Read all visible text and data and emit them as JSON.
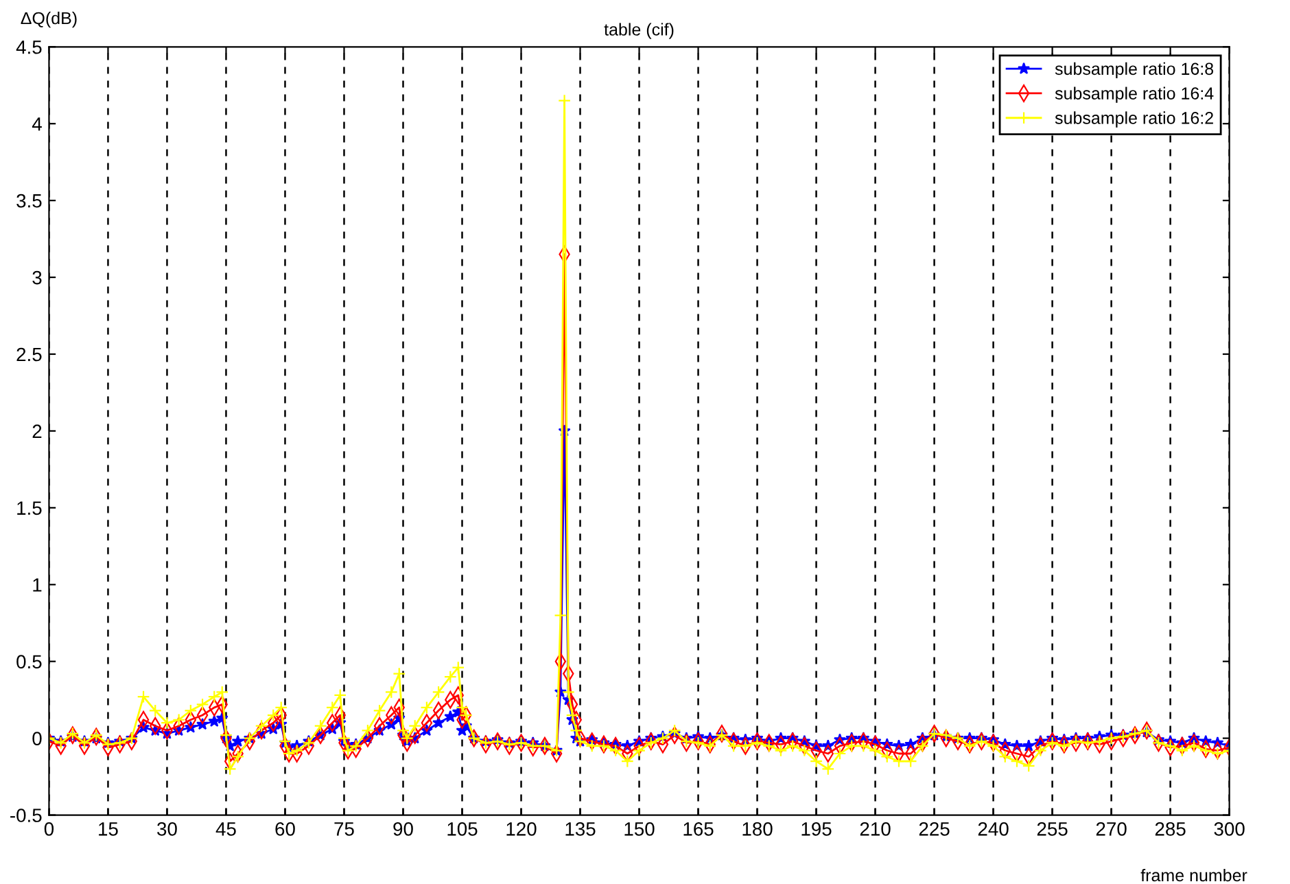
{
  "chart_data": {
    "type": "line",
    "title": "table (cif)",
    "xlabel": "frame number",
    "ylabel": "ΔQ(dB)",
    "x": [
      0,
      3,
      6,
      9,
      12,
      15,
      18,
      21,
      24,
      27,
      30,
      33,
      36,
      39,
      42,
      44,
      45,
      46,
      48,
      51,
      54,
      57,
      59,
      60,
      61,
      63,
      66,
      69,
      72,
      74,
      75,
      76,
      78,
      81,
      84,
      87,
      89,
      90,
      91,
      93,
      96,
      99,
      102,
      104,
      105,
      106,
      108,
      111,
      114,
      117,
      120,
      123,
      126,
      129,
      130,
      131,
      132,
      133,
      134,
      135,
      138,
      141,
      144,
      147,
      150,
      153,
      156,
      159,
      162,
      165,
      168,
      171,
      174,
      177,
      180,
      183,
      186,
      189,
      192,
      195,
      198,
      201,
      204,
      207,
      210,
      213,
      216,
      219,
      222,
      225,
      228,
      231,
      234,
      237,
      240,
      243,
      246,
      249,
      252,
      255,
      258,
      261,
      264,
      267,
      270,
      273,
      276,
      279,
      282,
      285,
      288,
      291,
      294,
      297,
      300
    ],
    "series": [
      {
        "name": "subsample ratio 16:8",
        "color": "#0000ff",
        "marker": "star",
        "values": [
          0.0,
          -0.02,
          0.01,
          -0.02,
          0.0,
          -0.03,
          -0.02,
          0.0,
          0.07,
          0.05,
          0.03,
          0.05,
          0.07,
          0.09,
          0.11,
          0.13,
          0.0,
          -0.05,
          -0.02,
          0.0,
          0.03,
          0.06,
          0.09,
          -0.03,
          -0.06,
          -0.05,
          -0.02,
          0.02,
          0.06,
          0.1,
          -0.02,
          -0.05,
          -0.04,
          0.0,
          0.05,
          0.09,
          0.13,
          0.02,
          -0.02,
          0.0,
          0.05,
          0.1,
          0.14,
          0.17,
          0.05,
          0.08,
          0.0,
          -0.02,
          -0.01,
          -0.03,
          -0.02,
          -0.03,
          -0.05,
          -0.08,
          0.3,
          2.0,
          0.25,
          0.12,
          0.0,
          -0.02,
          -0.01,
          -0.03,
          -0.04,
          -0.05,
          -0.02,
          0.0,
          0.01,
          0.03,
          0.0,
          0.01,
          0.0,
          0.02,
          0.0,
          -0.01,
          0.0,
          -0.02,
          0.0,
          0.0,
          -0.02,
          -0.05,
          -0.05,
          -0.01,
          0.0,
          0.0,
          -0.02,
          -0.04,
          -0.05,
          -0.04,
          0.0,
          0.02,
          0.01,
          0.0,
          0.0,
          0.0,
          -0.01,
          -0.04,
          -0.05,
          -0.05,
          -0.02,
          0.0,
          -0.01,
          0.0,
          0.0,
          0.01,
          0.02,
          0.02,
          0.03,
          0.04,
          -0.01,
          -0.02,
          -0.03,
          0.0,
          -0.02,
          -0.03,
          -0.05
        ]
      },
      {
        "name": "subsample ratio 16:4",
        "color": "#ff0000",
        "marker": "diamond",
        "values": [
          -0.02,
          -0.05,
          0.02,
          -0.05,
          0.01,
          -0.06,
          -0.04,
          -0.02,
          0.12,
          0.08,
          0.05,
          0.08,
          0.12,
          0.15,
          0.2,
          0.22,
          0.0,
          -0.15,
          -0.1,
          -0.02,
          0.05,
          0.1,
          0.15,
          -0.05,
          -0.1,
          -0.1,
          -0.05,
          0.02,
          0.1,
          0.15,
          -0.03,
          -0.08,
          -0.07,
          0.0,
          0.08,
          0.15,
          0.2,
          0.02,
          -0.03,
          0.02,
          0.1,
          0.18,
          0.25,
          0.28,
          0.12,
          0.15,
          0.0,
          -0.04,
          -0.02,
          -0.05,
          -0.03,
          -0.06,
          -0.05,
          -0.1,
          0.5,
          3.15,
          0.42,
          0.22,
          0.12,
          0.0,
          -0.02,
          -0.04,
          -0.05,
          -0.1,
          -0.05,
          -0.02,
          -0.04,
          0.02,
          -0.03,
          -0.02,
          -0.04,
          0.03,
          -0.02,
          -0.05,
          -0.02,
          -0.03,
          -0.04,
          -0.02,
          -0.05,
          -0.08,
          -0.1,
          -0.05,
          -0.03,
          -0.02,
          -0.04,
          -0.08,
          -0.1,
          -0.1,
          -0.03,
          0.03,
          0.0,
          -0.02,
          -0.04,
          -0.02,
          -0.03,
          -0.08,
          -0.1,
          -0.12,
          -0.05,
          -0.02,
          -0.04,
          -0.03,
          -0.02,
          -0.04,
          -0.02,
          0.0,
          0.02,
          0.05,
          -0.03,
          -0.06,
          -0.05,
          -0.03,
          -0.07,
          -0.08,
          -0.06
        ]
      },
      {
        "name": "subsample ratio 16:2",
        "color": "#ffff00",
        "marker": "cross",
        "values": [
          0.0,
          -0.03,
          0.03,
          -0.03,
          0.02,
          -0.04,
          -0.03,
          0.0,
          0.27,
          0.18,
          0.1,
          0.12,
          0.18,
          0.22,
          0.27,
          0.3,
          0.02,
          -0.2,
          -0.12,
          0.0,
          0.08,
          0.15,
          0.2,
          -0.02,
          -0.1,
          -0.08,
          -0.03,
          0.08,
          0.2,
          0.28,
          0.0,
          -0.08,
          -0.05,
          0.05,
          0.18,
          0.3,
          0.42,
          0.05,
          0.0,
          0.08,
          0.2,
          0.3,
          0.4,
          0.46,
          0.2,
          0.15,
          0.0,
          -0.03,
          -0.02,
          -0.04,
          -0.03,
          -0.05,
          -0.05,
          -0.08,
          0.8,
          4.15,
          0.3,
          0.15,
          0.05,
          -0.02,
          -0.05,
          -0.05,
          -0.08,
          -0.15,
          -0.08,
          -0.03,
          0.0,
          0.05,
          -0.02,
          -0.03,
          -0.05,
          0.02,
          -0.05,
          -0.05,
          -0.03,
          -0.05,
          -0.08,
          -0.05,
          -0.08,
          -0.15,
          -0.2,
          -0.1,
          -0.05,
          -0.05,
          -0.08,
          -0.12,
          -0.15,
          -0.15,
          -0.05,
          0.03,
          0.02,
          0.0,
          -0.05,
          -0.02,
          -0.05,
          -0.12,
          -0.15,
          -0.18,
          -0.08,
          -0.03,
          -0.05,
          -0.02,
          -0.03,
          -0.02,
          0.0,
          0.01,
          0.03,
          0.05,
          -0.03,
          -0.05,
          -0.08,
          -0.05,
          -0.08,
          -0.1,
          -0.08
        ]
      }
    ],
    "xlim": [
      0,
      300
    ],
    "xticks": [
      0,
      15,
      30,
      45,
      60,
      75,
      90,
      105,
      120,
      135,
      150,
      165,
      180,
      195,
      210,
      225,
      240,
      255,
      270,
      285,
      300
    ],
    "ylim": [
      -0.5,
      4.5
    ],
    "yticks": [
      -0.5,
      0,
      0.5,
      1,
      1.5,
      2,
      2.5,
      3,
      3.5,
      4,
      4.5
    ],
    "grid": "x",
    "legend": "top right",
    "line_style": "solid"
  }
}
